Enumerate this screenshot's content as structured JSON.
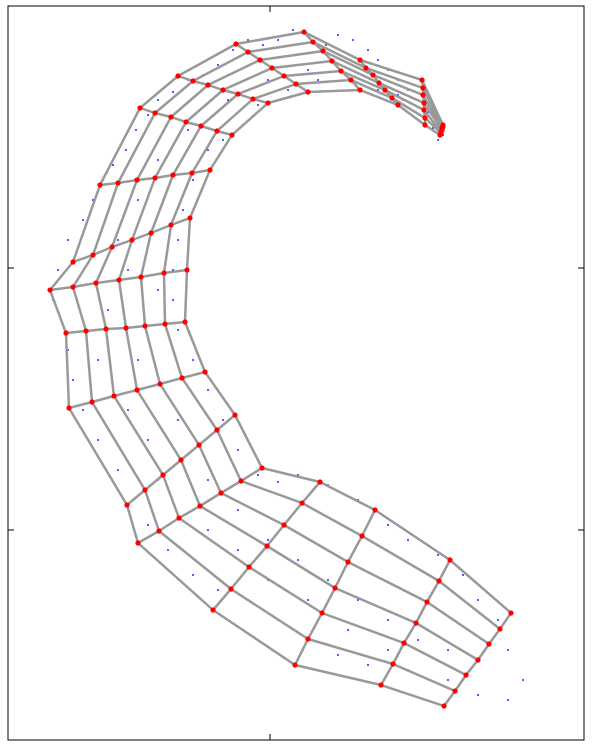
{
  "chart_data": {
    "type": "som",
    "xlim": [
      0,
      576
    ],
    "ylim": [
      0,
      734
    ],
    "xticks": [
      262
    ],
    "yticks": [
      210,
      472
    ],
    "points": {
      "color": "#0000ff",
      "x": [
        420,
        425,
        430,
        410,
        400,
        390,
        380,
        370,
        360,
        345,
        330,
        318,
        300,
        285,
        270,
        255,
        240,
        225,
        210,
        195,
        180,
        165,
        150,
        140,
        128,
        118,
        105,
        95,
        85,
        75,
        60,
        50,
        45,
        55,
        60,
        65,
        75,
        90,
        110,
        125,
        140,
        160,
        185,
        210,
        240,
        270,
        300,
        330,
        360,
        400,
        440,
        470,
        500,
        515,
        500,
        490,
        470,
        455,
        430,
        400,
        380,
        350,
        320,
        290,
        270,
        250,
        230,
        215,
        200,
        185,
        170,
        165,
        165,
        170,
        175,
        185,
        200,
        215,
        250,
        280,
        310,
        340,
        370,
        395,
        150,
        120,
        100,
        90,
        120,
        140,
        170,
        200,
        230,
        260,
        290,
        320,
        350,
        380,
        410,
        440,
        470,
        260,
        300,
        340,
        380,
        420,
        230,
        200,
        150,
        130,
        110,
        130,
        150,
        180,
        220,
        260,
        300,
        340,
        390,
        435
      ],
      "y": [
        628,
        612,
        600,
        640,
        650,
        660,
        670,
        680,
        690,
        700,
        705,
        695,
        705,
        710,
        700,
        695,
        700,
        690,
        675,
        665,
        660,
        648,
        640,
        625,
        610,
        590,
        575,
        560,
        540,
        520,
        500,
        470,
        440,
        415,
        390,
        360,
        330,
        300,
        270,
        240,
        215,
        190,
        165,
        150,
        140,
        120,
        100,
        85,
        75,
        70,
        60,
        45,
        40,
        60,
        90,
        120,
        140,
        165,
        185,
        200,
        215,
        240,
        255,
        265,
        258,
        265,
        290,
        320,
        350,
        380,
        410,
        440,
        470,
        500,
        530,
        560,
        590,
        600,
        635,
        650,
        660,
        662,
        650,
        640,
        450,
        470,
        430,
        380,
        330,
        300,
        320,
        260,
        230,
        200,
        180,
        160,
        140,
        120,
        100,
        90,
        80,
        160,
        140,
        110,
        90,
        110,
        190,
        210,
        260,
        380,
        500,
        540,
        580,
        610,
        640,
        660,
        670,
        660,
        645,
        605
      ]
    },
    "nodes": {
      "color": "#ff0000",
      "line_color": "#999999",
      "x": [
        [
          503,
          492,
          481,
          470,
          458,
          447,
          436
        ],
        [
          442,
          431,
          419,
          408,
          396,
          385,
          373
        ],
        [
          367,
          354,
          340,
          327,
          314,
          300,
          287
        ],
        [
          312,
          294,
          276,
          259,
          241,
          223,
          205
        ],
        [
          254,
          233,
          213,
          192,
          171,
          151,
          130
        ],
        [
          227,
          209,
          191,
          173,
          155,
          137,
          119
        ],
        [
          197,
          174,
          152,
          129,
          106,
          84,
          61
        ],
        [
          177,
          157,
          137,
          118,
          98,
          78,
          58
        ],
        [
          179,
          156,
          133,
          111,
          88,
          65,
          42
        ],
        [
          182,
          163,
          143,
          124,
          104,
          85,
          65
        ],
        [
          202,
          184,
          165,
          147,
          129,
          110,
          92
        ],
        [
          224,
          209,
          193,
          178,
          163,
          147,
          132
        ],
        [
          260,
          245,
          230,
          215,
          200,
          185,
          170
        ],
        [
          300,
          288,
          276,
          264,
          252,
          240,
          228
        ],
        [
          352,
          343,
          333,
          324,
          315,
          305,
          296
        ],
        [
          390,
          384,
          377,
          371,
          365,
          358,
          352
        ],
        [
          417,
          417,
          416,
          416,
          415,
          415,
          414
        ],
        [
          432,
          433,
          433,
          434,
          434,
          435,
          435
        ]
      ],
      "y": [
        [
          127,
          111,
          96,
          80,
          65,
          49,
          34
        ],
        [
          180,
          159,
          138,
          117,
          97,
          76,
          55
        ],
        [
          230,
          204,
          178,
          152,
          127,
          101,
          75
        ],
        [
          258,
          237,
          215,
          194,
          173,
          151,
          130
        ],
        [
          272,
          259,
          247,
          234,
          222,
          209,
          197
        ],
        [
          325,
          310,
          295,
          280,
          265,
          250,
          235
        ],
        [
          368,
          362,
          356,
          350,
          344,
          338,
          332
        ],
        [
          418,
          416,
          414,
          412,
          411,
          409,
          407
        ],
        [
          470,
          467,
          463,
          460,
          457,
          453,
          450
        ],
        [
          522,
          515,
          507,
          500,
          493,
          485,
          478
        ],
        [
          570,
          567,
          565,
          562,
          560,
          557,
          555
        ],
        [
          605,
          609,
          614,
          618,
          623,
          627,
          632
        ],
        [
          637,
          641,
          646,
          650,
          655,
          659,
          664
        ],
        [
          648,
          656,
          664,
          672,
          680,
          688,
          696
        ],
        [
          650,
          660,
          669,
          679,
          689,
          698,
          708
        ],
        [
          635,
          642,
          650,
          657,
          665,
          672,
          680
        ],
        [
          615,
          622,
          630,
          637,
          645,
          652,
          660
        ],
        [
          605,
          607,
          608,
          610,
          612,
          613,
          615
        ]
      ]
    }
  }
}
